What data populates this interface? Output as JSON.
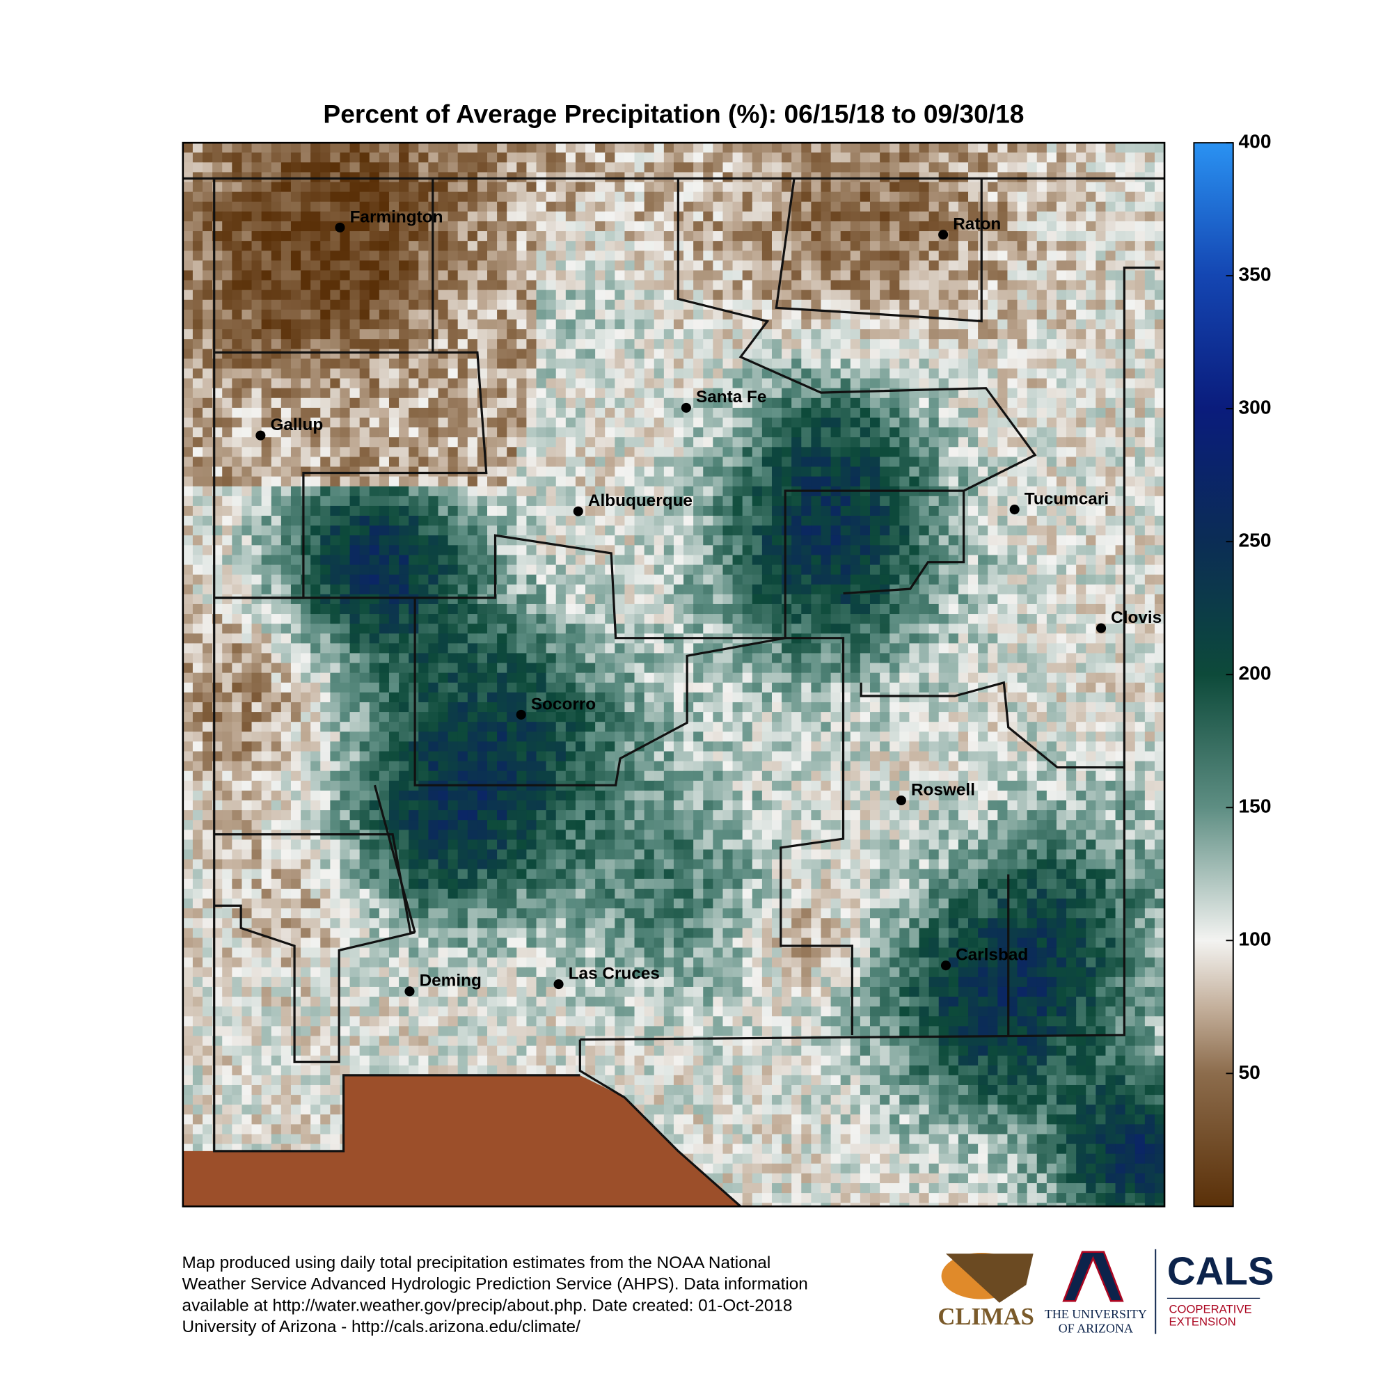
{
  "title": "Percent of Average Precipitation (%): 06/15/18 to 09/30/18",
  "map": {
    "cities": [
      {
        "name": "Farmington"
      },
      {
        "name": "Raton"
      },
      {
        "name": "Santa Fe"
      },
      {
        "name": "Gallup"
      },
      {
        "name": "Albuquerque"
      },
      {
        "name": "Tucumcari"
      },
      {
        "name": "Clovis"
      },
      {
        "name": "Socorro"
      },
      {
        "name": "Roswell"
      },
      {
        "name": "Carlsbad"
      },
      {
        "name": "Deming"
      },
      {
        "name": "Las Cruces"
      }
    ]
  },
  "colorbar": {
    "range": [
      0,
      400
    ],
    "ticks": [
      50,
      100,
      150,
      200,
      250,
      300,
      350,
      400
    ],
    "colormap": [
      {
        "value": 0,
        "color": "#5a3008"
      },
      {
        "value": 50,
        "color": "#8c6c4c"
      },
      {
        "value": 75,
        "color": "#c4b09c"
      },
      {
        "value": 100,
        "color": "#f3f3f1"
      },
      {
        "value": 150,
        "color": "#5e8e83"
      },
      {
        "value": 200,
        "color": "#0d4a3a"
      },
      {
        "value": 250,
        "color": "#0b2d55"
      },
      {
        "value": 300,
        "color": "#0a1c7c"
      },
      {
        "value": 350,
        "color": "#1446b2"
      },
      {
        "value": 400,
        "color": "#2a92f2"
      }
    ]
  },
  "footer": {
    "lines": [
      "Map produced using daily total precipitation estimates from the NOAA National",
      "Weather Service Advanced Hydrologic Prediction Service (AHPS). Data information",
      "available at http://water.weather.gov/precip/about.php. Date created: 01-Oct-2018",
      "University of Arizona - http://cals.arizona.edu/climate/"
    ]
  },
  "logos": {
    "climas": "CLIMAS",
    "university": [
      "THE UNIVERSITY",
      "OF ARIZONA"
    ],
    "cals": "CALS",
    "extension": [
      "COOPERATIVE",
      "EXTENSION"
    ]
  }
}
